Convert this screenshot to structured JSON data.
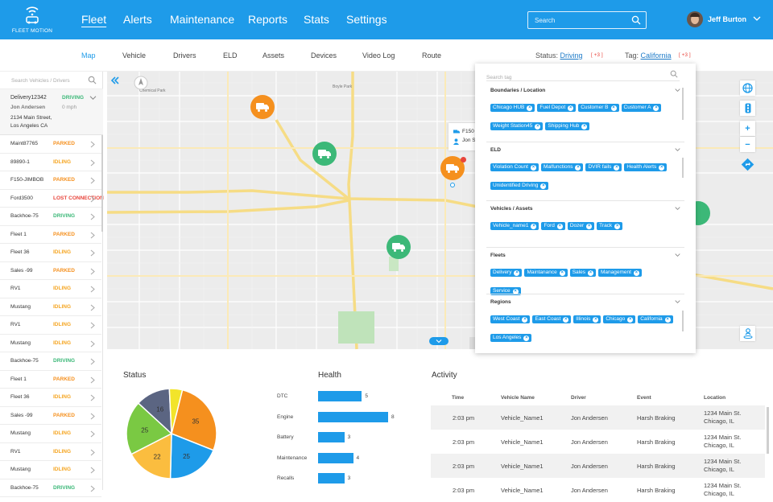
{
  "brand": {
    "name": "FLEET MOTION"
  },
  "nav": {
    "items": [
      "Fleet",
      "Alerts",
      "Maintenance",
      "Reports",
      "Stats",
      "Settings"
    ],
    "active": "Fleet"
  },
  "search": {
    "placeholder": "Search"
  },
  "user": {
    "name": "Jeff Burton"
  },
  "subnav": {
    "items": [
      "Map",
      "Vehicle",
      "Drivers",
      "ELD",
      "Assets",
      "Devices",
      "Video Log",
      "Route"
    ],
    "active": "Map",
    "status_label": "Status:",
    "status_value": "Driving",
    "status_more": "[ +3 ]",
    "tag_label": "Tag:",
    "tag_value": "California",
    "tag_more": "[ +3 ]"
  },
  "vehicle_list": {
    "search_placeholder": "Search Vehicles / Drivers",
    "selected": {
      "name": "Delivery12342",
      "status": "DRIVING",
      "driver": "Jon Andersen",
      "speed": "0 mph",
      "address_line1": "2134 Main Street,",
      "address_line2": "Los Angeles CA"
    },
    "rows": [
      {
        "name": "Maint87765",
        "status": "PARKED"
      },
      {
        "name": "89890-1",
        "status": "IDLING"
      },
      {
        "name": "F150-JIMBOB",
        "status": "PARKED"
      },
      {
        "name": "Ford3500",
        "status": "LOST CONNECTION"
      },
      {
        "name": "Backhoe-75",
        "status": "DRIVING"
      },
      {
        "name": "Fleet 1",
        "status": "PARKED"
      },
      {
        "name": "Fleet 36",
        "status": "IDLING"
      },
      {
        "name": "Sales -99",
        "status": "PARKED"
      },
      {
        "name": "RV1",
        "status": "IDLING"
      },
      {
        "name": "Mustang",
        "status": "IDLING"
      },
      {
        "name": "RV1",
        "status": "IDLING"
      },
      {
        "name": "Mustang",
        "status": "IDLING"
      },
      {
        "name": "Backhoe-75",
        "status": "DRIVING"
      },
      {
        "name": "Fleet 1",
        "status": "PARKED"
      },
      {
        "name": "Fleet 36",
        "status": "IDLING"
      },
      {
        "name": "Sales -99",
        "status": "PARKED"
      },
      {
        "name": "Mustang",
        "status": "IDLING"
      },
      {
        "name": "RV1",
        "status": "IDLING"
      },
      {
        "name": "Mustang",
        "status": "IDLING"
      },
      {
        "name": "Backhoe-75",
        "status": "DRIVING"
      }
    ],
    "status_colors": {
      "DRIVING": "#3cb878",
      "PARKED": "#f5901e",
      "IDLING": "#f5a623",
      "LOST CONNECTION": "#e8453c"
    }
  },
  "map": {
    "popup": {
      "vehicle": "F150",
      "driver": "Jon S"
    },
    "markers": [
      {
        "color": "orange",
        "icon": "truck-icon"
      },
      {
        "color": "green",
        "icon": "truck-icon"
      },
      {
        "color": "orange",
        "icon": "truck-icon",
        "alert": true
      },
      {
        "color": "green",
        "icon": "truck-icon"
      },
      {
        "color": "green",
        "icon": "truck-icon"
      }
    ],
    "controls": [
      "globe-icon",
      "traffic-icon",
      "zoom-in",
      "zoom-out",
      "directions-icon",
      "street-view-icon"
    ]
  },
  "tag_panel": {
    "search_placeholder": "Search tag",
    "groups": [
      {
        "title": "Boundaries / Location",
        "tags": [
          "Chicago HUB",
          "Fuel Depot",
          "Customer B",
          "Customer A",
          "Weight Station45",
          "Shipping Hub"
        ]
      },
      {
        "title": "ELD",
        "tags": [
          "Violation Count",
          "Malfunctions",
          "DVIR fails",
          "Health Alerts",
          "Unidentified Driving"
        ]
      },
      {
        "title": "Vehicles / Assets",
        "tags": [
          "Vehicle_name1",
          "Ford",
          "Dozer",
          "Track"
        ]
      },
      {
        "title": "Fleets",
        "tags": [
          "Delivery",
          "Maintanance",
          "Sales",
          "Management",
          "Service"
        ]
      },
      {
        "title": "Regions",
        "tags": [
          "West Coast",
          "East Coast",
          "Illinois",
          "Chicago",
          "California",
          "Los Angeles"
        ]
      }
    ]
  },
  "status_panel": {
    "title": "Status",
    "chart_data": {
      "type": "pie",
      "values": [
        35,
        25,
        22,
        25,
        16,
        6
      ],
      "labels": [
        "35",
        "25",
        "22",
        "25",
        "16",
        ""
      ],
      "colors": [
        "#f5901e",
        "#1e9be9",
        "#fbbd3f",
        "#7ac943",
        "#5b6582",
        "#f2e42a"
      ]
    }
  },
  "health_panel": {
    "title": "Health",
    "chart_data": {
      "type": "bar",
      "categories": [
        "DTC",
        "Engine",
        "Battery",
        "Maintenance",
        "Recalls"
      ],
      "values": [
        5,
        8,
        3,
        4,
        3
      ],
      "xlim": [
        0,
        8
      ]
    }
  },
  "activity": {
    "title": "Activity",
    "columns": [
      "Time",
      "Vehicle Name",
      "Driver",
      "Event",
      "Location"
    ],
    "rows": [
      {
        "time": "2:03 pm",
        "vehicle": "Vehicle_Name1",
        "driver": "Jon Andersen",
        "event": "Harsh Braking",
        "loc1": "1234 Main St.",
        "loc2": "Chicago, IL"
      },
      {
        "time": "2:03 pm",
        "vehicle": "Vehicle_Name1",
        "driver": "Jon Andersen",
        "event": "Harsh Braking",
        "loc1": "1234 Main St.",
        "loc2": "Chicago, IL"
      },
      {
        "time": "2:03 pm",
        "vehicle": "Vehicle_Name1",
        "driver": "Jon Andersen",
        "event": "Harsh Braking",
        "loc1": "1234 Main St.",
        "loc2": "Chicago, IL"
      },
      {
        "time": "2:03 pm",
        "vehicle": "Vehicle_Name1",
        "driver": "Jon Andersen",
        "event": "Harsh Braking",
        "loc1": "1234 Main St.",
        "loc2": "Chicago, IL"
      }
    ]
  }
}
